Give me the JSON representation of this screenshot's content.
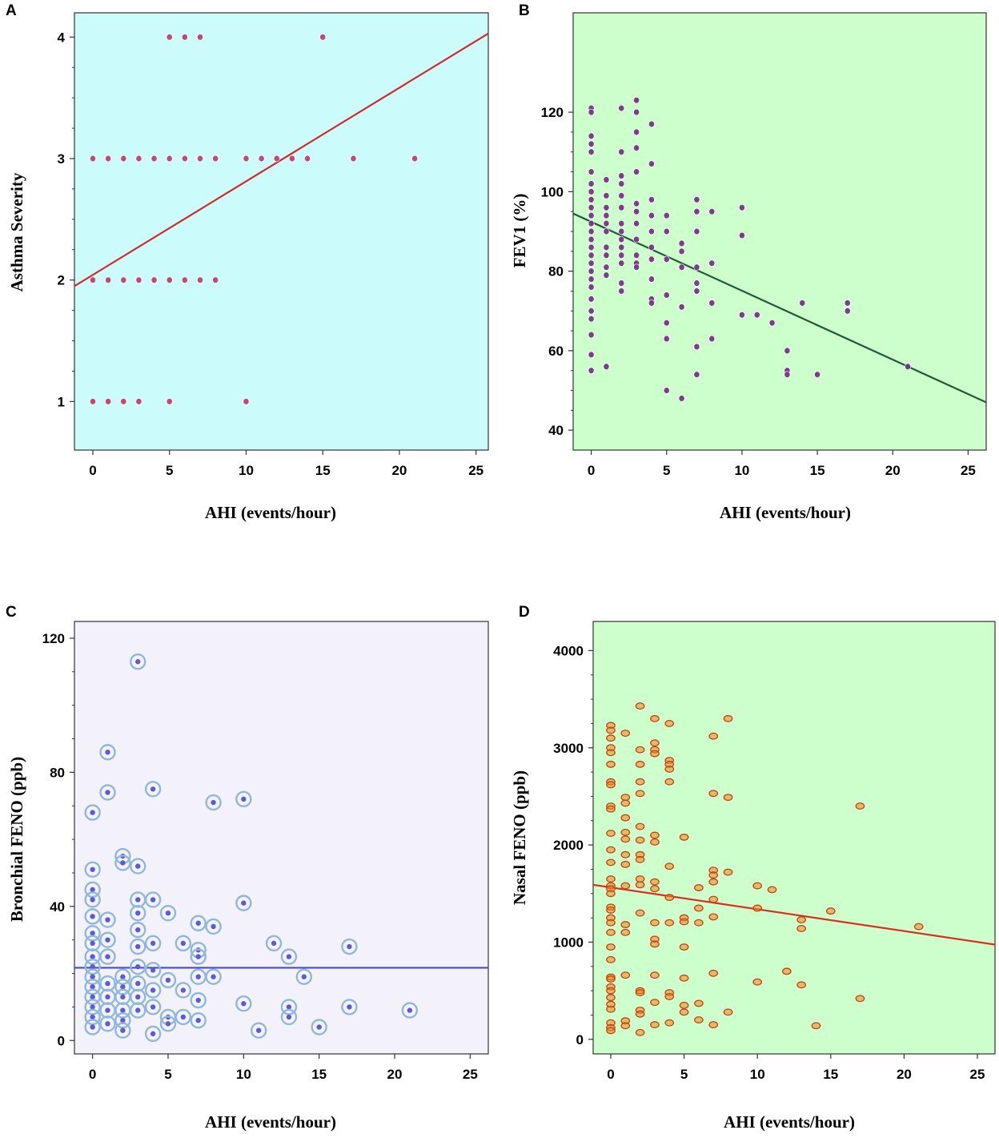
{
  "chart_data": [
    {
      "id": "A",
      "type": "scatter",
      "panel_label": "A",
      "xlabel": "AHI (events/hour)",
      "ylabel": "Asthma Severity",
      "xlim": [
        -1.2,
        25.8
      ],
      "ylim": [
        0.6,
        4.2
      ],
      "xticks": [
        0,
        5,
        10,
        15,
        20,
        25
      ],
      "yticks": [
        1,
        2,
        3,
        4
      ],
      "background": "#ccfbfb",
      "marker_color": "#c03a6a",
      "marker": "dot",
      "line_color": "#d22a2a",
      "fit_line": [
        [
          -1.2,
          1.95
        ],
        [
          25.8,
          4.03
        ]
      ],
      "points": [
        [
          0,
          1
        ],
        [
          1,
          1
        ],
        [
          2,
          1
        ],
        [
          3,
          1
        ],
        [
          5,
          1
        ],
        [
          10,
          1
        ],
        [
          0,
          2
        ],
        [
          1,
          2
        ],
        [
          2,
          2
        ],
        [
          3,
          2
        ],
        [
          4,
          2
        ],
        [
          5,
          2
        ],
        [
          6,
          2
        ],
        [
          7,
          2
        ],
        [
          8,
          2
        ],
        [
          0,
          3
        ],
        [
          1,
          3
        ],
        [
          2,
          3
        ],
        [
          3,
          3
        ],
        [
          4,
          3
        ],
        [
          5,
          3
        ],
        [
          6,
          3
        ],
        [
          7,
          3
        ],
        [
          8,
          3
        ],
        [
          10,
          3
        ],
        [
          11,
          3
        ],
        [
          12,
          3
        ],
        [
          13,
          3
        ],
        [
          14,
          3
        ],
        [
          17,
          3
        ],
        [
          21,
          3
        ],
        [
          5,
          4
        ],
        [
          6,
          4
        ],
        [
          7,
          4
        ],
        [
          15,
          4
        ]
      ]
    },
    {
      "id": "B",
      "type": "scatter",
      "panel_label": "B",
      "xlabel": "AHI (events/hour)",
      "ylabel": "FEV1 (%)",
      "xlim": [
        -1.2,
        26.2
      ],
      "ylim": [
        35,
        145
      ],
      "xticks": [
        0,
        5,
        10,
        15,
        20,
        25
      ],
      "yticks": [
        40,
        60,
        80,
        100,
        120
      ],
      "background": "#ccffcc",
      "marker_color": "#7a2a8a",
      "marker": "dot",
      "line_color": "#1f5a34",
      "fit_line": [
        [
          -1.2,
          94.5
        ],
        [
          26.2,
          47.0
        ]
      ],
      "points": [
        [
          0,
          121
        ],
        [
          0,
          120
        ],
        [
          0,
          114
        ],
        [
          0,
          112
        ],
        [
          0,
          110
        ],
        [
          0,
          105
        ],
        [
          0,
          102
        ],
        [
          0,
          100
        ],
        [
          0,
          98
        ],
        [
          0,
          96
        ],
        [
          0,
          94
        ],
        [
          0,
          92
        ],
        [
          0,
          90
        ],
        [
          0,
          88
        ],
        [
          0,
          86
        ],
        [
          0,
          84
        ],
        [
          0,
          82
        ],
        [
          0,
          80
        ],
        [
          0,
          78
        ],
        [
          0,
          76
        ],
        [
          0,
          73
        ],
        [
          0,
          70
        ],
        [
          0,
          68
        ],
        [
          0,
          64
        ],
        [
          0,
          59
        ],
        [
          0,
          55
        ],
        [
          1,
          103
        ],
        [
          1,
          99
        ],
        [
          1,
          96
        ],
        [
          1,
          94
        ],
        [
          1,
          92
        ],
        [
          1,
          90
        ],
        [
          1,
          86
        ],
        [
          1,
          84
        ],
        [
          1,
          81
        ],
        [
          1,
          79
        ],
        [
          1,
          56
        ],
        [
          2,
          121
        ],
        [
          2,
          110
        ],
        [
          2,
          104
        ],
        [
          2,
          102
        ],
        [
          2,
          99
        ],
        [
          2,
          96
        ],
        [
          2,
          92
        ],
        [
          2,
          90
        ],
        [
          2,
          88
        ],
        [
          2,
          86
        ],
        [
          2,
          84
        ],
        [
          2,
          82
        ],
        [
          2,
          77
        ],
        [
          2,
          75
        ],
        [
          3,
          123
        ],
        [
          3,
          120
        ],
        [
          3,
          115
        ],
        [
          3,
          111
        ],
        [
          3,
          105
        ],
        [
          3,
          97
        ],
        [
          3,
          95
        ],
        [
          3,
          92
        ],
        [
          3,
          88
        ],
        [
          3,
          84
        ],
        [
          3,
          82
        ],
        [
          3,
          81
        ],
        [
          4,
          117
        ],
        [
          4,
          107
        ],
        [
          4,
          98
        ],
        [
          4,
          94
        ],
        [
          4,
          90
        ],
        [
          4,
          86
        ],
        [
          4,
          83
        ],
        [
          4,
          78
        ],
        [
          4,
          73
        ],
        [
          4,
          72
        ],
        [
          5,
          94
        ],
        [
          5,
          90
        ],
        [
          5,
          83
        ],
        [
          5,
          74
        ],
        [
          5,
          67
        ],
        [
          5,
          63
        ],
        [
          5,
          50
        ],
        [
          6,
          87
        ],
        [
          6,
          85
        ],
        [
          6,
          81
        ],
        [
          6,
          71
        ],
        [
          6,
          48
        ],
        [
          7,
          98
        ],
        [
          7,
          95
        ],
        [
          7,
          90
        ],
        [
          7,
          81
        ],
        [
          7,
          77
        ],
        [
          7,
          75
        ],
        [
          7,
          61
        ],
        [
          7,
          54
        ],
        [
          8,
          95
        ],
        [
          8,
          82
        ],
        [
          8,
          72
        ],
        [
          8,
          63
        ],
        [
          10,
          96
        ],
        [
          10,
          89
        ],
        [
          10,
          69
        ],
        [
          11,
          69
        ],
        [
          12,
          67
        ],
        [
          13,
          60
        ],
        [
          13,
          55
        ],
        [
          13,
          54
        ],
        [
          14,
          72
        ],
        [
          15,
          54
        ],
        [
          17,
          72
        ],
        [
          17,
          70
        ],
        [
          21,
          56
        ]
      ]
    },
    {
      "id": "C",
      "type": "scatter",
      "panel_label": "C",
      "xlabel": "AHI (events/hour)",
      "ylabel": "Bronchial FENO (ppb)",
      "xlim": [
        -1.2,
        26.2
      ],
      "ylim": [
        -4,
        125
      ],
      "xticks": [
        0,
        5,
        10,
        15,
        20,
        25
      ],
      "yticks": [
        0,
        40,
        80,
        120
      ],
      "background": "#f3f2fb",
      "marker_color": "#5b5bd6",
      "marker_ring_color": "#8fb9d6",
      "marker": "ring",
      "line_color": "#4a4ad0",
      "fit_line": [
        [
          -1.2,
          21.7
        ],
        [
          26.2,
          21.7
        ]
      ],
      "points": [
        [
          0,
          68
        ],
        [
          0,
          51
        ],
        [
          0,
          45
        ],
        [
          0,
          42
        ],
        [
          0,
          37
        ],
        [
          0,
          32
        ],
        [
          0,
          29
        ],
        [
          0,
          25
        ],
        [
          0,
          22
        ],
        [
          0,
          19
        ],
        [
          0,
          16
        ],
        [
          0,
          13
        ],
        [
          0,
          10
        ],
        [
          0,
          7
        ],
        [
          0,
          4
        ],
        [
          1,
          86
        ],
        [
          1,
          74
        ],
        [
          1,
          36
        ],
        [
          1,
          30
        ],
        [
          1,
          25
        ],
        [
          1,
          17
        ],
        [
          1,
          13
        ],
        [
          1,
          9
        ],
        [
          1,
          5
        ],
        [
          2,
          55
        ],
        [
          2,
          53
        ],
        [
          2,
          19
        ],
        [
          2,
          16
        ],
        [
          2,
          13
        ],
        [
          2,
          9
        ],
        [
          2,
          6
        ],
        [
          2,
          3
        ],
        [
          3,
          113
        ],
        [
          3,
          52
        ],
        [
          3,
          42
        ],
        [
          3,
          38
        ],
        [
          3,
          33
        ],
        [
          3,
          28
        ],
        [
          3,
          22
        ],
        [
          3,
          17
        ],
        [
          3,
          13
        ],
        [
          3,
          9
        ],
        [
          4,
          75
        ],
        [
          4,
          42
        ],
        [
          4,
          29
        ],
        [
          4,
          21
        ],
        [
          4,
          15
        ],
        [
          4,
          10
        ],
        [
          4,
          2
        ],
        [
          5,
          38
        ],
        [
          5,
          18
        ],
        [
          5,
          7
        ],
        [
          5,
          5
        ],
        [
          6,
          29
        ],
        [
          6,
          15
        ],
        [
          6,
          7
        ],
        [
          7,
          35
        ],
        [
          7,
          27
        ],
        [
          7,
          25
        ],
        [
          7,
          19
        ],
        [
          7,
          12
        ],
        [
          7,
          6
        ],
        [
          8,
          71
        ],
        [
          8,
          34
        ],
        [
          8,
          19
        ],
        [
          10,
          72
        ],
        [
          10,
          41
        ],
        [
          10,
          11
        ],
        [
          11,
          3
        ],
        [
          12,
          29
        ],
        [
          13,
          25
        ],
        [
          13,
          10
        ],
        [
          13,
          7
        ],
        [
          14,
          19
        ],
        [
          15,
          4
        ],
        [
          17,
          28
        ],
        [
          17,
          10
        ],
        [
          21,
          9
        ]
      ]
    },
    {
      "id": "D",
      "type": "scatter",
      "panel_label": "D",
      "xlabel": "AHI (events/hour)",
      "ylabel": "Nasal FENO (ppb)",
      "xlim": [
        -1.2,
        26.2
      ],
      "ylim": [
        -150,
        4300
      ],
      "xticks": [
        0,
        5,
        10,
        15,
        20,
        25
      ],
      "yticks": [
        0,
        1000,
        2000,
        3000,
        4000
      ],
      "background": "#ccffcc",
      "marker_color": "#e88a10",
      "marker_edge_color": "#d23a1a",
      "marker": "ellipse",
      "line_color": "#d93025",
      "fit_line": [
        [
          -1.2,
          1590
        ],
        [
          26.2,
          975
        ]
      ],
      "points": [
        [
          0,
          3230
        ],
        [
          0,
          3180
        ],
        [
          0,
          3100
        ],
        [
          0,
          3000
        ],
        [
          0,
          2950
        ],
        [
          0,
          2830
        ],
        [
          0,
          2650
        ],
        [
          0,
          2620
        ],
        [
          0,
          2400
        ],
        [
          0,
          2370
        ],
        [
          0,
          2120
        ],
        [
          0,
          1950
        ],
        [
          0,
          1820
        ],
        [
          0,
          1650
        ],
        [
          0,
          1580
        ],
        [
          0,
          1550
        ],
        [
          0,
          1500
        ],
        [
          0,
          1360
        ],
        [
          0,
          1330
        ],
        [
          0,
          1250
        ],
        [
          0,
          1200
        ],
        [
          0,
          1100
        ],
        [
          0,
          950
        ],
        [
          0,
          820
        ],
        [
          0,
          640
        ],
        [
          0,
          620
        ],
        [
          0,
          540
        ],
        [
          0,
          500
        ],
        [
          0,
          430
        ],
        [
          0,
          360
        ],
        [
          0,
          310
        ],
        [
          0,
          170
        ],
        [
          0,
          120
        ],
        [
          0,
          90
        ],
        [
          1,
          3150
        ],
        [
          1,
          2490
        ],
        [
          1,
          2430
        ],
        [
          1,
          2280
        ],
        [
          1,
          2130
        ],
        [
          1,
          2060
        ],
        [
          1,
          1900
        ],
        [
          1,
          1800
        ],
        [
          1,
          1580
        ],
        [
          1,
          1180
        ],
        [
          1,
          1100
        ],
        [
          1,
          660
        ],
        [
          1,
          190
        ],
        [
          1,
          140
        ],
        [
          2,
          3430
        ],
        [
          2,
          2980
        ],
        [
          2,
          2830
        ],
        [
          2,
          2650
        ],
        [
          2,
          2530
        ],
        [
          2,
          2190
        ],
        [
          2,
          2050
        ],
        [
          2,
          1900
        ],
        [
          2,
          1850
        ],
        [
          2,
          1650
        ],
        [
          2,
          1590
        ],
        [
          2,
          1300
        ],
        [
          2,
          500
        ],
        [
          2,
          480
        ],
        [
          2,
          300
        ],
        [
          2,
          260
        ],
        [
          2,
          70
        ],
        [
          3,
          3300
        ],
        [
          3,
          3050
        ],
        [
          3,
          2980
        ],
        [
          3,
          2940
        ],
        [
          3,
          2100
        ],
        [
          3,
          2030
        ],
        [
          3,
          1620
        ],
        [
          3,
          1550
        ],
        [
          3,
          1200
        ],
        [
          3,
          1030
        ],
        [
          3,
          980
        ],
        [
          3,
          660
        ],
        [
          3,
          380
        ],
        [
          3,
          150
        ],
        [
          4,
          3250
        ],
        [
          4,
          2870
        ],
        [
          4,
          2830
        ],
        [
          4,
          2780
        ],
        [
          4,
          2650
        ],
        [
          4,
          1780
        ],
        [
          4,
          1460
        ],
        [
          4,
          1200
        ],
        [
          4,
          480
        ],
        [
          4,
          440
        ],
        [
          4,
          170
        ],
        [
          5,
          2080
        ],
        [
          5,
          1250
        ],
        [
          5,
          1210
        ],
        [
          5,
          950
        ],
        [
          5,
          630
        ],
        [
          5,
          350
        ],
        [
          5,
          280
        ],
        [
          6,
          1560
        ],
        [
          6,
          1350
        ],
        [
          6,
          1200
        ],
        [
          6,
          370
        ],
        [
          6,
          200
        ],
        [
          7,
          3120
        ],
        [
          7,
          2530
        ],
        [
          7,
          1740
        ],
        [
          7,
          1690
        ],
        [
          7,
          1620
        ],
        [
          7,
          1440
        ],
        [
          7,
          1260
        ],
        [
          7,
          680
        ],
        [
          7,
          150
        ],
        [
          8,
          3300
        ],
        [
          8,
          2490
        ],
        [
          8,
          1720
        ],
        [
          8,
          280
        ],
        [
          10,
          1580
        ],
        [
          10,
          1350
        ],
        [
          10,
          590
        ],
        [
          11,
          1540
        ],
        [
          12,
          700
        ],
        [
          13,
          1230
        ],
        [
          13,
          1140
        ],
        [
          13,
          560
        ],
        [
          14,
          140
        ],
        [
          15,
          1320
        ],
        [
          17,
          2400
        ],
        [
          17,
          420
        ],
        [
          21,
          1160
        ]
      ]
    }
  ]
}
